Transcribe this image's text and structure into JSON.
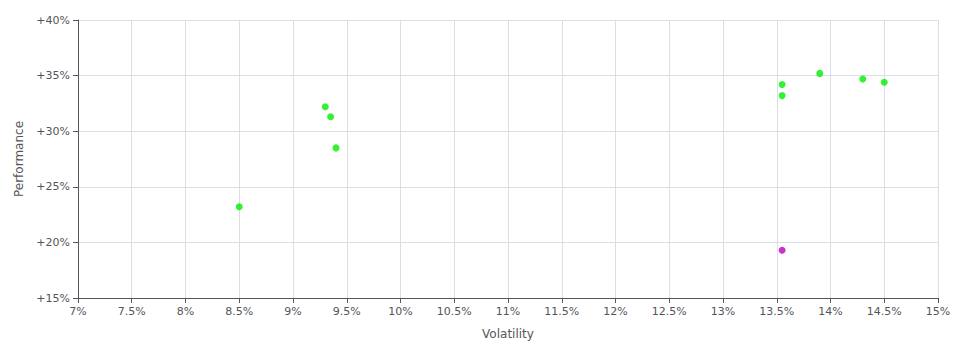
{
  "chart_data": {
    "type": "scatter",
    "xlabel": "Volatility",
    "ylabel": "Performance",
    "series": [
      {
        "color": "#00ee00",
        "x": [
          0.085,
          0.093,
          0.0935,
          0.094,
          0.1355,
          0.1355,
          0.139,
          0.143,
          0.145
        ],
        "values": [
          0.232,
          0.322,
          0.313,
          0.285,
          0.342,
          0.332,
          0.352,
          0.347,
          0.344
        ]
      },
      {
        "color": "#bb00bb",
        "x": [
          0.1355
        ],
        "values": [
          0.193
        ]
      }
    ],
    "xlim": [
      0.07,
      0.15
    ],
    "ylim": [
      0.15,
      0.4
    ],
    "xticks": [
      {
        "value": 0.07,
        "label": "7%"
      },
      {
        "value": 0.075,
        "label": "7.5%"
      },
      {
        "value": 0.08,
        "label": "8%"
      },
      {
        "value": 0.085,
        "label": "8.5%"
      },
      {
        "value": 0.09,
        "label": "9%"
      },
      {
        "value": 0.095,
        "label": "9.5%"
      },
      {
        "value": 0.1,
        "label": "10%"
      },
      {
        "value": 0.105,
        "label": "10.5%"
      },
      {
        "value": 0.11,
        "label": "11%"
      },
      {
        "value": 0.115,
        "label": "11.5%"
      },
      {
        "value": 0.12,
        "label": "12%"
      },
      {
        "value": 0.125,
        "label": "12.5%"
      },
      {
        "value": 0.13,
        "label": "13%"
      },
      {
        "value": 0.135,
        "label": "13.5%"
      },
      {
        "value": 0.14,
        "label": "14%"
      },
      {
        "value": 0.145,
        "label": "14.5%"
      },
      {
        "value": 0.15,
        "label": "15%"
      }
    ],
    "yticks": [
      {
        "value": 0.15,
        "label": "+15%"
      },
      {
        "value": 0.2,
        "label": "+20%"
      },
      {
        "value": 0.25,
        "label": "+25%"
      },
      {
        "value": 0.3,
        "label": "+30%"
      },
      {
        "value": 0.35,
        "label": "+35%"
      },
      {
        "value": 0.4,
        "label": "+40%"
      }
    ],
    "grid": true
  }
}
